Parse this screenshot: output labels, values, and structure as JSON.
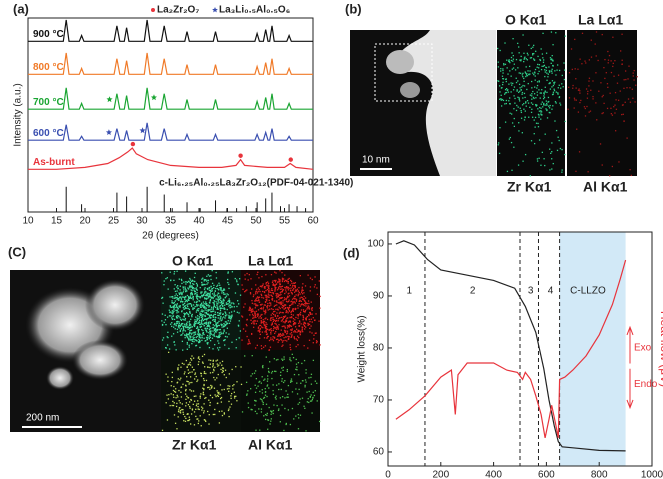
{
  "chart_data": [
    {
      "type": "line",
      "panel_label": "(a)",
      "x_label": "2θ (degrees)",
      "y_label": "Intensity (a.u.)",
      "xlim": [
        10,
        60
      ],
      "xticks": [
        10,
        15,
        20,
        25,
        30,
        35,
        40,
        45,
        50,
        55,
        60
      ],
      "ylim": [
        0,
        100
      ],
      "series": [
        {
          "name": "900 °C",
          "color": "#111111",
          "x": [
            10,
            16.2,
            16.7,
            17.2,
            19,
            19.4,
            19.8,
            25.1,
            25.6,
            26.1,
            26.9,
            27.3,
            27.7,
            30.4,
            30.9,
            31.4,
            33.4,
            33.9,
            34.4,
            37.5,
            37.9,
            38.3,
            42.5,
            42.9,
            43.3,
            49.8,
            50.2,
            50.6,
            51.3,
            51.7,
            52.1,
            52.4,
            52.8,
            53.2,
            55.4,
            55.8,
            56.2,
            60
          ],
          "values": [
            88,
            88,
            99,
            88,
            88,
            91,
            88,
            88,
            96,
            88,
            88,
            95,
            88,
            88,
            99,
            88,
            88,
            96,
            88,
            88,
            93,
            88,
            88,
            93,
            88,
            88,
            92,
            88,
            88,
            94,
            88,
            88,
            96,
            88,
            88,
            91,
            88,
            88
          ]
        },
        {
          "name": "800 °C",
          "color": "#f07a28",
          "x": [
            10,
            16.2,
            16.7,
            17.2,
            19,
            19.4,
            19.8,
            25.1,
            25.6,
            26.1,
            26.9,
            27.3,
            27.7,
            30.4,
            30.9,
            31.4,
            33.4,
            33.9,
            34.4,
            37.5,
            37.9,
            38.3,
            42.5,
            42.9,
            43.3,
            49.8,
            50.2,
            50.6,
            51.3,
            51.7,
            52.1,
            52.4,
            52.8,
            53.2,
            55.4,
            55.8,
            56.2,
            60
          ],
          "values": [
            71,
            71,
            82,
            71,
            71,
            74,
            71,
            71,
            79,
            71,
            71,
            78,
            71,
            71,
            82,
            71,
            71,
            79,
            71,
            71,
            76,
            71,
            71,
            76,
            71,
            71,
            75,
            71,
            71,
            77,
            71,
            71,
            79,
            71,
            71,
            74,
            71,
            71
          ]
        },
        {
          "name": "700 °C",
          "color": "#1aa532",
          "x": [
            10,
            16.2,
            16.7,
            17.2,
            19,
            19.4,
            19.8,
            25.1,
            25.6,
            26.1,
            26.9,
            27.3,
            27.7,
            30.4,
            30.9,
            31.4,
            33.4,
            33.9,
            34.4,
            37.5,
            37.9,
            38.3,
            42.5,
            42.9,
            43.3,
            49.8,
            50.2,
            50.6,
            51.3,
            51.7,
            52.1,
            52.4,
            52.8,
            53.2,
            55.4,
            55.8,
            56.2,
            60
          ],
          "values": [
            53,
            53,
            64,
            53,
            53,
            56,
            53,
            53,
            61,
            53,
            53,
            60,
            53,
            53,
            64,
            53,
            53,
            61,
            53,
            53,
            58,
            53,
            53,
            58,
            53,
            53,
            57,
            53,
            53,
            59,
            53,
            53,
            61,
            53,
            53,
            56,
            53,
            53
          ]
        },
        {
          "name": "600 °C",
          "color": "#3a4fb0",
          "x": [
            10,
            16.2,
            16.7,
            17.2,
            19,
            19.4,
            19.8,
            25.1,
            25.6,
            26.1,
            26.9,
            27.3,
            27.7,
            30.4,
            30.9,
            31.4,
            33.4,
            33.9,
            34.4,
            37.5,
            37.9,
            38.3,
            42.5,
            42.9,
            43.3,
            49.8,
            50.2,
            50.6,
            51.3,
            51.7,
            52.1,
            52.4,
            52.8,
            53.2,
            55.4,
            55.8,
            56.2,
            60
          ],
          "values": [
            37,
            37,
            45,
            37,
            37,
            39,
            37,
            37,
            43,
            37,
            37,
            42,
            37,
            37,
            46,
            37,
            37,
            43,
            37,
            37,
            40,
            37,
            37,
            40,
            37,
            37,
            40,
            37,
            37,
            41,
            37,
            37,
            43,
            37,
            37,
            39,
            37,
            37
          ]
        },
        {
          "name": "As-burnt",
          "color": "#e8343c",
          "x": [
            10,
            15,
            20,
            24,
            26,
            27.5,
            28.3,
            29,
            31,
            35,
            40,
            44,
            46.5,
            47.3,
            48,
            52,
            55,
            56,
            57,
            60
          ],
          "values": [
            22,
            22,
            23,
            25,
            28,
            31,
            33,
            30,
            27,
            24,
            23,
            23,
            24,
            27,
            24,
            23,
            23,
            25,
            23,
            22
          ]
        }
      ],
      "markers": [
        {
          "name": "La₂Zr₂O₇",
          "symbol": "circle",
          "color": "#e8343c",
          "x": [
            28.4,
            47.3,
            56.1
          ],
          "values": [
            35,
            29,
            27
          ]
        },
        {
          "name": "La₃Li₀.₅Al₀.₅O₆",
          "symbol": "star",
          "color": "#3a4fb0",
          "x": [
            24.2,
            30.1,
            24.3,
            32.1
          ],
          "values": [
            41,
            42,
            58,
            59
          ],
          "point_colors": [
            "#3a4fb0",
            "#3a4fb0",
            "#1aa532",
            "#1aa532"
          ]
        }
      ],
      "reference": {
        "name": "c-Li₆.₂₅Al₀.₂₅La₃Zr₂O₁₂(PDF-04-021-1340)",
        "color": "#111111",
        "x": [
          16.7,
          19.4,
          25.6,
          27.3,
          30.9,
          33.9,
          35.3,
          37.9,
          40.2,
          42.9,
          44.9,
          46.6,
          48.3,
          50.2,
          51.7,
          52.8,
          54.3,
          55.8,
          57.2,
          58.7
        ],
        "values": [
          13,
          4,
          10,
          8,
          13,
          9,
          2,
          5,
          2,
          6,
          2,
          2,
          3,
          5,
          7,
          10,
          3,
          4,
          3,
          2
        ]
      }
    },
    {
      "type": "line",
      "panel_label": "(d)",
      "x_label": "Temperature (ºC)",
      "y_label": "Weight loss(%)",
      "y2_label": "Heat flow (μV)",
      "xlim": [
        0,
        1000
      ],
      "xticks": [
        0,
        200,
        400,
        600,
        800,
        1000
      ],
      "ylim": [
        57.3,
        102.3
      ],
      "yticks": [
        60,
        70,
        80,
        90,
        100
      ],
      "y2lim": [
        0,
        100
      ],
      "series": [
        {
          "color": "#222222",
          "x": [
            30,
            60,
            100,
            150,
            200,
            300,
            400,
            480,
            520,
            560,
            590,
            610,
            630,
            645,
            660,
            700,
            800,
            900
          ],
          "values": [
            100,
            100.6,
            99.8,
            97,
            95,
            94,
            93,
            91.5,
            88,
            83,
            76,
            70,
            65,
            62,
            61,
            60.8,
            60.3,
            60.2
          ]
        },
        {
          "color": "#e8343c",
          "axis": "y2",
          "x": [
            30,
            80,
            140,
            200,
            240,
            255,
            265,
            300,
            350,
            400,
            450,
            490,
            510,
            520,
            540,
            560,
            580,
            595,
            610,
            620,
            635,
            645,
            650,
            670,
            700,
            750,
            800,
            850,
            880,
            900
          ],
          "values": [
            20,
            24,
            30,
            38,
            41,
            22,
            39,
            44,
            44,
            44,
            41,
            40,
            37,
            40,
            37,
            30,
            22,
            12,
            20,
            26,
            18,
            12,
            37,
            38,
            41,
            47,
            56,
            69,
            80,
            88
          ]
        }
      ],
      "vlines": [
        140,
        500,
        570,
        650
      ],
      "span": [
        650,
        900
      ],
      "span_color": "#d2e9f7",
      "annotations": [
        "1",
        "2",
        "3",
        "4",
        "C-LLZO"
      ],
      "exo": "Exo",
      "endo": "Endo"
    }
  ],
  "panel_b": {
    "label": "(b)",
    "maps": [
      "O Kα1",
      "La Lα1",
      "Zr Kα1",
      "Al Kα1"
    ],
    "scale_bar": "10 nm"
  },
  "panel_c": {
    "label": "(C)",
    "maps": [
      "O Kα1",
      "La Lα1",
      "Zr Kα1",
      "Al Kα1"
    ],
    "scale_bar": "200 nm"
  }
}
